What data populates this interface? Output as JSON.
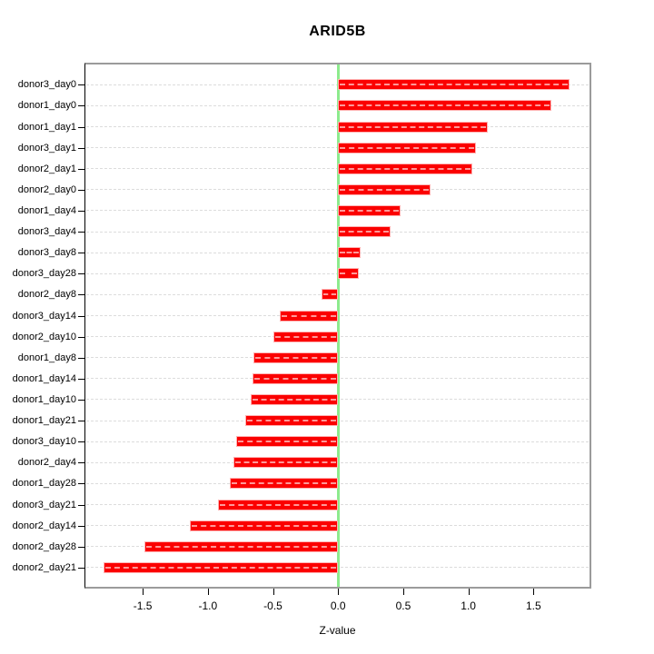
{
  "title": "ARID5B",
  "chart_data": {
    "type": "bar",
    "orientation": "horizontal",
    "title": "ARID5B",
    "xlabel": "Z-value",
    "ylabel": "",
    "grid": true,
    "xlim": [
      -1.94,
      1.93
    ],
    "xticks": [
      -1.5,
      -1.0,
      -0.5,
      0.0,
      0.5,
      1.0,
      1.5
    ],
    "xtick_labels": [
      "-1.5",
      "-1.0",
      "-0.5",
      "0.0",
      "0.5",
      "1.0",
      "1.5"
    ],
    "categories": [
      "donor3_day0",
      "donor1_day0",
      "donor1_day1",
      "donor3_day1",
      "donor2_day1",
      "donor2_day0",
      "donor1_day4",
      "donor3_day4",
      "donor3_day8",
      "donor3_day28",
      "donor2_day8",
      "donor3_day14",
      "donor2_day10",
      "donor1_day8",
      "donor1_day14",
      "donor1_day10",
      "donor1_day21",
      "donor3_day10",
      "donor2_day4",
      "donor1_day28",
      "donor3_day21",
      "donor2_day14",
      "donor2_day28",
      "donor2_day21"
    ],
    "values": [
      1.78,
      1.64,
      1.15,
      1.06,
      1.03,
      0.71,
      0.48,
      0.4,
      0.17,
      0.16,
      -0.13,
      -0.45,
      -0.5,
      -0.65,
      -0.66,
      -0.67,
      -0.71,
      -0.78,
      -0.8,
      -0.83,
      -0.92,
      -1.14,
      -1.49,
      -1.8
    ],
    "colors": {
      "bar": "#fb0000",
      "bar_border": "#ffb3b3",
      "bar_inner_dash": "rgba(255,255,255,0.6)",
      "zero_line": "#8deb8d",
      "gridline": "#dcdcdc",
      "axis_box": "#9b9b9b",
      "axis_line": "#000000",
      "text": "#000000",
      "background": "#ffffff"
    }
  }
}
